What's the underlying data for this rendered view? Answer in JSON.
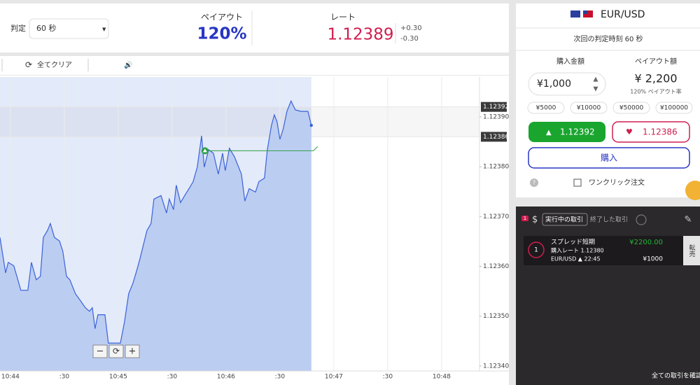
{
  "header": {
    "judge_label": "判定",
    "judge_value": "60 秒",
    "payout_label": "ペイアウト",
    "payout_value": "120%",
    "rate_label": "レート",
    "rate_value": "1.12389",
    "rate_up": "+0.30",
    "rate_down": "-0.30"
  },
  "toolbar": {
    "clear_all": "全てクリア"
  },
  "chart_data": {
    "type": "line",
    "xlim": [
      -5.8,
      261.1
    ],
    "xticks": [
      {
        "value": 0,
        "label": "10:44"
      },
      {
        "value": 30,
        "label": ":30"
      },
      {
        "value": 60,
        "label": "10:45"
      },
      {
        "value": 90,
        "label": ":30"
      },
      {
        "value": 120,
        "label": "10:46"
      },
      {
        "value": 150,
        "label": ":30"
      },
      {
        "value": 180,
        "label": "10:47"
      },
      {
        "value": 210,
        "label": ":30"
      },
      {
        "value": 240,
        "label": "10:48"
      }
    ],
    "ylim": [
      1.12339,
      1.12398
    ],
    "yticks": [
      {
        "value": 1.1234,
        "label": "1.12340"
      },
      {
        "value": 1.1235,
        "label": "1.12350"
      },
      {
        "value": 1.1236,
        "label": "1.12360"
      },
      {
        "value": 1.1237,
        "label": "1.12370"
      },
      {
        "value": 1.1238,
        "label": "1.12380"
      },
      {
        "value": 1.1239,
        "label": "1.12390"
      }
    ],
    "price_markers": [
      {
        "value": 1.12392,
        "label": "1.12392"
      },
      {
        "value": 1.12386,
        "label": "1.12386"
      }
    ],
    "x": [
      -5.8,
      -2.7,
      -1.2,
      1.9,
      5.8,
      9.7,
      11.7,
      14.4,
      16.7,
      18.3,
      20.6,
      22.2,
      24.5,
      27.3,
      29.2,
      31.2,
      33.1,
      36.2,
      39.0,
      41.7,
      44.0,
      45.6,
      47.1,
      48.7,
      52.6,
      54.5,
      58.4,
      61.2,
      63.5,
      65.8,
      68.2,
      70.5,
      72.1,
      76.0,
      78.3,
      79.9,
      83.8,
      86.9,
      88.4,
      90.8,
      92.3,
      94.7,
      97.0,
      99.4,
      101.7,
      104.0,
      106.4,
      107.9,
      110.3,
      113.0,
      115.7,
      118.1,
      119.6,
      121.9,
      124.7,
      128.6,
      130.5,
      132.9,
      136.4,
      138.3,
      141.4,
      143.0,
      145.3,
      146.9,
      148.4,
      150.0,
      151.9,
      153.9,
      156.2,
      158.6,
      161.7,
      165.6,
      167.5
    ],
    "series": [
      {
        "color": "#3a62d8",
        "values": [
          1.123658,
          1.123587,
          1.123608,
          1.123601,
          1.123552,
          1.123552,
          1.123608,
          1.123573,
          1.12358,
          1.123658,
          1.123672,
          1.123686,
          1.123658,
          1.123651,
          1.12363,
          1.12358,
          1.123573,
          1.123545,
          1.123531,
          1.123517,
          1.12351,
          1.123517,
          1.123475,
          1.123503,
          1.123503,
          1.123446,
          1.123446,
          1.123446,
          1.123489,
          1.123545,
          1.123566,
          1.123594,
          1.123615,
          1.123672,
          1.123686,
          1.123735,
          1.123742,
          1.123707,
          1.123735,
          1.123714,
          1.123763,
          1.123728,
          1.123742,
          1.123756,
          1.12377,
          1.123799,
          1.123862,
          1.123799,
          1.123834,
          1.123827,
          1.123785,
          1.123827,
          1.123792,
          1.123837,
          1.12382,
          1.123785,
          1.123731,
          1.123756,
          1.123749,
          1.12377,
          1.123777,
          1.123834,
          1.123883,
          1.123904,
          1.12389,
          1.123855,
          1.123876,
          1.123911,
          1.123932,
          1.123914,
          1.123911,
          1.123911,
          1.123883
        ]
      }
    ],
    "entry": {
      "x": [
        108.3,
        167.5
      ],
      "value": 1.123832,
      "color": "#2ea043"
    }
  },
  "order": {
    "pair": "EUR/USD",
    "next_judge": "次回の判定時刻 60 秒",
    "amount_label": "購入金額",
    "payout_amount_label": "ペイアウト額",
    "amount": "¥1,000",
    "payout_amount": "¥ 2,200",
    "payout_rate": "120% ペイアウト率",
    "chips": [
      "¥5000",
      "¥10000",
      "¥50000",
      "¥100000"
    ],
    "high_button": "1.12392",
    "low_button": "1.12386",
    "buy_button": "購入",
    "one_click": "ワンクリック注文"
  },
  "trades": {
    "badge": "1",
    "tab_active": "実行中の取引",
    "tab_closed": "終了した取引",
    "card": {
      "index": "1",
      "name": "スプレッド短期",
      "rate": "購入レート 1.12380",
      "pair_time": "EUR/USD ▲ 22:45",
      "payout": "¥2200.00",
      "amount": "¥1000",
      "resell": "転売"
    },
    "view_all": "全ての取引を確認"
  }
}
